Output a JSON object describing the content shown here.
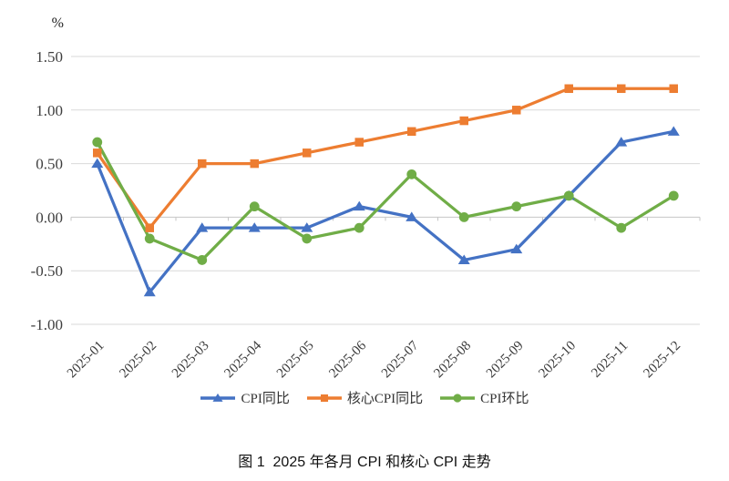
{
  "chart_data": {
    "type": "line",
    "title": "图 1  2025 年各月 CPI 和核心 CPI 走势",
    "unit_label": "%",
    "categories": [
      "2025-01",
      "2025-02",
      "2025-03",
      "2025-04",
      "2025-05",
      "2025-06",
      "2025-07",
      "2025-08",
      "2025-09",
      "2025-10",
      "2025-11",
      "2025-12"
    ],
    "series": [
      {
        "name": "CPI同比",
        "color": "#4472C4",
        "marker": "triangle",
        "values": [
          0.5,
          -0.7,
          -0.1,
          -0.1,
          -0.1,
          0.1,
          0.0,
          -0.4,
          -0.3,
          0.2,
          0.7,
          0.8
        ]
      },
      {
        "name": "核心CPI同比",
        "color": "#ED7D31",
        "marker": "square",
        "values": [
          0.6,
          -0.1,
          0.5,
          0.5,
          0.6,
          0.7,
          0.8,
          0.9,
          1.0,
          1.2,
          1.2,
          1.2
        ]
      },
      {
        "name": "CPI环比",
        "color": "#70AD47",
        "marker": "circle",
        "values": [
          0.7,
          -0.2,
          -0.4,
          0.1,
          -0.2,
          -0.1,
          0.4,
          0.0,
          0.1,
          0.2,
          -0.1,
          0.2
        ]
      }
    ],
    "ylim": [
      -1.0,
      1.5
    ],
    "yticks": [
      {
        "value": 1.5,
        "label": "1.50"
      },
      {
        "value": 1.0,
        "label": "1.00"
      },
      {
        "value": 0.5,
        "label": "0.50"
      },
      {
        "value": 0.0,
        "label": "0.00"
      },
      {
        "value": -0.5,
        "label": "-0.50"
      },
      {
        "value": -1.0,
        "label": "-1.00"
      }
    ],
    "grid": true,
    "legend_position": "bottom",
    "colors": {
      "gridline": "#d9d9d9",
      "axis": "#c6c6c6"
    }
  }
}
